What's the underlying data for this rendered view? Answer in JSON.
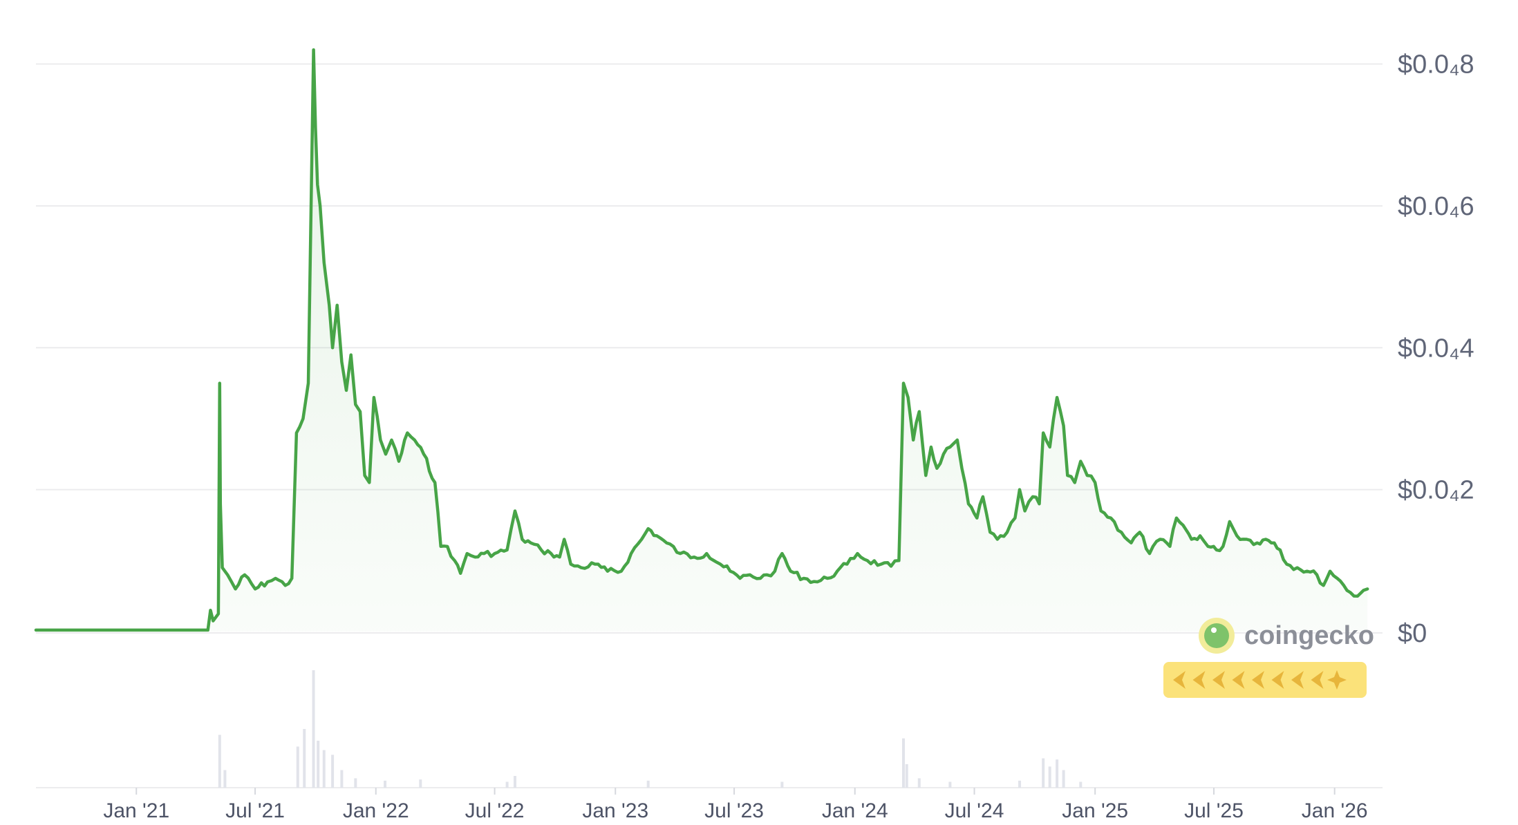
{
  "brand": {
    "name": "coingecko"
  },
  "colors": {
    "line": "#47a447",
    "fill": "#47a447",
    "grid": "#ececee",
    "volume": "#e1e3ea",
    "badge": "#fbe27a",
    "badge_icon": "#e7b53b"
  },
  "chart_data": {
    "type": "line",
    "title": "",
    "xlabel": "",
    "ylabel": "",
    "grid": true,
    "y_tick_labels": [
      "$0.0₄8",
      "$0.0₄6",
      "$0.0₄4",
      "$0.0₄2",
      "$0"
    ],
    "y_ticks": [
      8e-05,
      6e-05,
      4e-05,
      2e-05,
      0
    ],
    "ylim": [
      0,
      8.22e-05
    ],
    "x_tick_labels": [
      "Jan '21",
      "Jul '21",
      "Jan '22",
      "Jul '22",
      "Jan '23",
      "Jul '23",
      "Jan '24",
      "Jul '24",
      "Jan '25",
      "Jul '25",
      "Jan '26"
    ],
    "x_ticks": [
      "2021-01-01",
      "2021-07-01",
      "2022-01-01",
      "2022-07-01",
      "2023-01-01",
      "2023-07-01",
      "2024-01-01",
      "2024-07-01",
      "2025-01-01",
      "2025-07-01",
      "2026-01-01"
    ],
    "xlim": [
      "2020-08-01",
      "2026-03-15"
    ],
    "series": [
      {
        "points": [
          [
            "2020-08-01",
            2e-07
          ],
          [
            "2021-04-20",
            2e-07
          ],
          [
            "2021-04-24",
            3e-06
          ],
          [
            "2021-04-28",
            1.5e-06
          ],
          [
            "2021-05-06",
            2.5e-06
          ],
          [
            "2021-05-08",
            3.5e-05
          ],
          [
            "2021-05-09",
            1.8e-05
          ],
          [
            "2021-05-12",
            9e-06
          ],
          [
            "2021-05-20",
            8e-06
          ],
          [
            "2021-06-01",
            6e-06
          ],
          [
            "2021-06-15",
            8e-06
          ],
          [
            "2021-07-01",
            6e-06
          ],
          [
            "2021-07-20",
            7e-06
          ],
          [
            "2021-08-01",
            7.5e-06
          ],
          [
            "2021-08-16",
            6.5e-06
          ],
          [
            "2021-08-26",
            7.5e-06
          ],
          [
            "2021-09-02",
            2.8e-05
          ],
          [
            "2021-09-12",
            3e-05
          ],
          [
            "2021-09-20",
            3.5e-05
          ],
          [
            "2021-09-28",
            8.2e-05
          ],
          [
            "2021-10-01",
            7.1e-05
          ],
          [
            "2021-10-04",
            6.3e-05
          ],
          [
            "2021-10-08",
            6e-05
          ],
          [
            "2021-10-14",
            5.2e-05
          ],
          [
            "2021-10-22",
            4.6e-05
          ],
          [
            "2021-10-27",
            4e-05
          ],
          [
            "2021-11-03",
            4.6e-05
          ],
          [
            "2021-11-10",
            3.8e-05
          ],
          [
            "2021-11-17",
            3.4e-05
          ],
          [
            "2021-11-24",
            3.9e-05
          ],
          [
            "2021-12-01",
            3.2e-05
          ],
          [
            "2021-12-08",
            3.1e-05
          ],
          [
            "2021-12-15",
            2.2e-05
          ],
          [
            "2021-12-22",
            2.1e-05
          ],
          [
            "2021-12-29",
            3.3e-05
          ],
          [
            "2022-01-08",
            2.7e-05
          ],
          [
            "2022-01-16",
            2.5e-05
          ],
          [
            "2022-01-25",
            2.7e-05
          ],
          [
            "2022-02-05",
            2.4e-05
          ],
          [
            "2022-02-18",
            2.8e-05
          ],
          [
            "2022-03-01",
            2.7e-05
          ],
          [
            "2022-03-15",
            2.5e-05
          ],
          [
            "2022-04-01",
            2.1e-05
          ],
          [
            "2022-04-10",
            1.2e-05
          ],
          [
            "2022-04-20",
            1.2e-05
          ],
          [
            "2022-05-01",
            1e-05
          ],
          [
            "2022-05-10",
            8.2e-06
          ],
          [
            "2022-05-20",
            1.1e-05
          ],
          [
            "2022-06-01",
            1.05e-05
          ],
          [
            "2022-06-15",
            1.1e-05
          ],
          [
            "2022-07-01",
            1.1e-05
          ],
          [
            "2022-07-20",
            1.15e-05
          ],
          [
            "2022-08-01",
            1.7e-05
          ],
          [
            "2022-08-12",
            1.3e-05
          ],
          [
            "2022-08-25",
            1.25e-05
          ],
          [
            "2022-09-10",
            1.15e-05
          ],
          [
            "2022-09-25",
            1.1e-05
          ],
          [
            "2022-10-08",
            1.05e-05
          ],
          [
            "2022-10-15",
            1.3e-05
          ],
          [
            "2022-10-25",
            9.5e-06
          ],
          [
            "2022-11-10",
            9e-06
          ],
          [
            "2022-12-01",
            9.5e-06
          ],
          [
            "2022-12-20",
            8.5e-06
          ],
          [
            "2023-01-10",
            8.5e-06
          ],
          [
            "2023-01-25",
            1.1e-05
          ],
          [
            "2023-02-10",
            1.3e-05
          ],
          [
            "2023-02-20",
            1.45e-05
          ],
          [
            "2023-03-05",
            1.35e-05
          ],
          [
            "2023-03-20",
            1.25e-05
          ],
          [
            "2023-04-10",
            1.1e-05
          ],
          [
            "2023-05-01",
            1.05e-05
          ],
          [
            "2023-05-20",
            1.1e-05
          ],
          [
            "2023-06-10",
            9.5e-06
          ],
          [
            "2023-06-25",
            8.5e-06
          ],
          [
            "2023-07-10",
            7.5e-06
          ],
          [
            "2023-07-25",
            8e-06
          ],
          [
            "2023-08-10",
            7.5e-06
          ],
          [
            "2023-08-20",
            8e-06
          ],
          [
            "2023-09-01",
            8.5e-06
          ],
          [
            "2023-09-12",
            1.1e-05
          ],
          [
            "2023-09-25",
            8.5e-06
          ],
          [
            "2023-10-15",
            7.5e-06
          ],
          [
            "2023-11-05",
            7e-06
          ],
          [
            "2023-11-20",
            7.5e-06
          ],
          [
            "2023-12-05",
            8.5e-06
          ],
          [
            "2023-12-20",
            9.5e-06
          ],
          [
            "2024-01-05",
            1.1e-05
          ],
          [
            "2024-01-20",
            1e-05
          ],
          [
            "2024-02-10",
            9.5e-06
          ],
          [
            "2024-02-25",
            9.2e-06
          ],
          [
            "2024-03-08",
            1e-05
          ],
          [
            "2024-03-15",
            3.5e-05
          ],
          [
            "2024-03-22",
            3.3e-05
          ],
          [
            "2024-03-30",
            2.7e-05
          ],
          [
            "2024-04-08",
            3.1e-05
          ],
          [
            "2024-04-18",
            2.2e-05
          ],
          [
            "2024-04-26",
            2.6e-05
          ],
          [
            "2024-05-05",
            2.3e-05
          ],
          [
            "2024-05-15",
            2.5e-05
          ],
          [
            "2024-05-25",
            2.6e-05
          ],
          [
            "2024-06-05",
            2.7e-05
          ],
          [
            "2024-06-12",
            2.3e-05
          ],
          [
            "2024-06-22",
            1.8e-05
          ],
          [
            "2024-07-05",
            1.6e-05
          ],
          [
            "2024-07-14",
            1.9e-05
          ],
          [
            "2024-07-25",
            1.4e-05
          ],
          [
            "2024-08-05",
            1.3e-05
          ],
          [
            "2024-08-20",
            1.4e-05
          ],
          [
            "2024-09-01",
            1.6e-05
          ],
          [
            "2024-09-08",
            2e-05
          ],
          [
            "2024-09-16",
            1.7e-05
          ],
          [
            "2024-09-28",
            1.9e-05
          ],
          [
            "2024-10-08",
            1.8e-05
          ],
          [
            "2024-10-14",
            2.8e-05
          ],
          [
            "2024-10-24",
            2.6e-05
          ],
          [
            "2024-11-04",
            3.3e-05
          ],
          [
            "2024-11-14",
            2.9e-05
          ],
          [
            "2024-11-20",
            2.2e-05
          ],
          [
            "2024-12-01",
            2.1e-05
          ],
          [
            "2024-12-10",
            2.4e-05
          ],
          [
            "2024-12-20",
            2.2e-05
          ],
          [
            "2025-01-01",
            2.1e-05
          ],
          [
            "2025-01-10",
            1.7e-05
          ],
          [
            "2025-01-25",
            1.6e-05
          ],
          [
            "2025-02-10",
            1.4e-05
          ],
          [
            "2025-02-25",
            1.25e-05
          ],
          [
            "2025-03-10",
            1.4e-05
          ],
          [
            "2025-03-25",
            1.1e-05
          ],
          [
            "2025-04-10",
            1.3e-05
          ],
          [
            "2025-04-25",
            1.2e-05
          ],
          [
            "2025-05-05",
            1.6e-05
          ],
          [
            "2025-05-15",
            1.5e-05
          ],
          [
            "2025-05-28",
            1.3e-05
          ],
          [
            "2025-06-10",
            1.35e-05
          ],
          [
            "2025-06-22",
            1.2e-05
          ],
          [
            "2025-07-05",
            1.15e-05
          ],
          [
            "2025-07-15",
            1.2e-05
          ],
          [
            "2025-07-25",
            1.55e-05
          ],
          [
            "2025-08-05",
            1.35e-05
          ],
          [
            "2025-08-20",
            1.3e-05
          ],
          [
            "2025-09-05",
            1.25e-05
          ],
          [
            "2025-09-18",
            1.3e-05
          ],
          [
            "2025-10-01",
            1.25e-05
          ],
          [
            "2025-10-10",
            1.15e-05
          ],
          [
            "2025-10-20",
            9.5e-06
          ],
          [
            "2025-11-05",
            9e-06
          ],
          [
            "2025-11-20",
            8.5e-06
          ],
          [
            "2025-12-05",
            8e-06
          ],
          [
            "2025-12-15",
            6.5e-06
          ],
          [
            "2025-12-25",
            8.5e-06
          ],
          [
            "2026-01-05",
            7.5e-06
          ],
          [
            "2026-01-15",
            6.5e-06
          ],
          [
            "2026-01-25",
            5.5e-06
          ],
          [
            "2026-02-05",
            5e-06
          ],
          [
            "2026-02-14",
            5.8e-06
          ],
          [
            "2026-02-20",
            6e-06
          ]
        ]
      }
    ],
    "volume_spikes": [
      {
        "date": "2021-05-08",
        "value": 0.45
      },
      {
        "date": "2021-05-16",
        "value": 0.15
      },
      {
        "date": "2021-09-04",
        "value": 0.35
      },
      {
        "date": "2021-09-14",
        "value": 0.5
      },
      {
        "date": "2021-09-28",
        "value": 1.0
      },
      {
        "date": "2021-10-05",
        "value": 0.4
      },
      {
        "date": "2021-10-14",
        "value": 0.32
      },
      {
        "date": "2021-10-27",
        "value": 0.28
      },
      {
        "date": "2021-11-10",
        "value": 0.15
      },
      {
        "date": "2021-12-01",
        "value": 0.08
      },
      {
        "date": "2022-01-15",
        "value": 0.06
      },
      {
        "date": "2022-03-10",
        "value": 0.07
      },
      {
        "date": "2022-07-20",
        "value": 0.05
      },
      {
        "date": "2022-08-01",
        "value": 0.1
      },
      {
        "date": "2023-02-20",
        "value": 0.06
      },
      {
        "date": "2023-09-12",
        "value": 0.05
      },
      {
        "date": "2024-03-15",
        "value": 0.42
      },
      {
        "date": "2024-03-20",
        "value": 0.2
      },
      {
        "date": "2024-04-08",
        "value": 0.08
      },
      {
        "date": "2024-05-25",
        "value": 0.05
      },
      {
        "date": "2024-09-08",
        "value": 0.06
      },
      {
        "date": "2024-10-14",
        "value": 0.25
      },
      {
        "date": "2024-10-24",
        "value": 0.18
      },
      {
        "date": "2024-11-04",
        "value": 0.24
      },
      {
        "date": "2024-11-14",
        "value": 0.15
      },
      {
        "date": "2024-12-10",
        "value": 0.05
      }
    ]
  }
}
